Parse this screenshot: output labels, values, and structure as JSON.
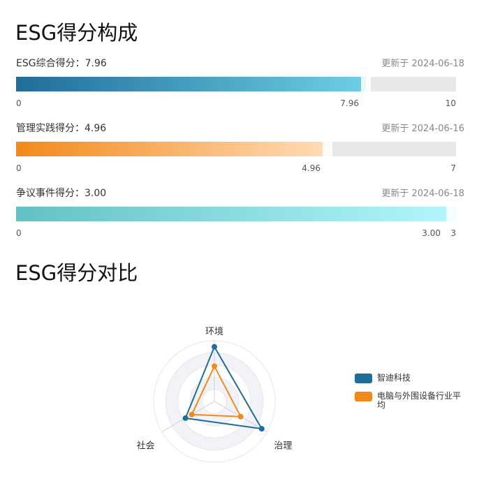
{
  "section1_title": "ESG得分构成",
  "section2_title": "ESG得分对比",
  "scores": [
    {
      "label": "ESG综合得分：7.96",
      "date": "更新于 2024-06-18",
      "value": 7.96,
      "max": 10,
      "value_label": "7.96",
      "min_label": "0",
      "max_label": "10",
      "color_start": "#1f6d99",
      "color_end": "#6fcfe3"
    },
    {
      "label": "管理实践得分：4.96",
      "date": "更新于 2024-06-16",
      "value": 4.96,
      "max": 7,
      "value_label": "4.96",
      "min_label": "0",
      "max_label": "7",
      "color_start": "#f28a1a",
      "color_end": "#ffdcb8"
    },
    {
      "label": "争议事件得分：3.00",
      "date": "更新于 2024-06-18",
      "value": 3.0,
      "max": 3,
      "value_label": "3.00",
      "min_label": "0",
      "max_label": "3",
      "color_start": "#62c1c4",
      "color_end": "#b3f7fb"
    }
  ],
  "chart_data": {
    "type": "radar",
    "axes": [
      "环境",
      "治理",
      "社会"
    ],
    "max": 10,
    "series": [
      {
        "name": "智迪科技",
        "color": "#1f6d99",
        "values": [
          9.0,
          9.0,
          5.5
        ]
      },
      {
        "name": "电脑与外围设备行业平均",
        "color": "#f28a1a",
        "values": [
          5.8,
          5.0,
          4.3
        ]
      }
    ],
    "legend_position": "right"
  }
}
